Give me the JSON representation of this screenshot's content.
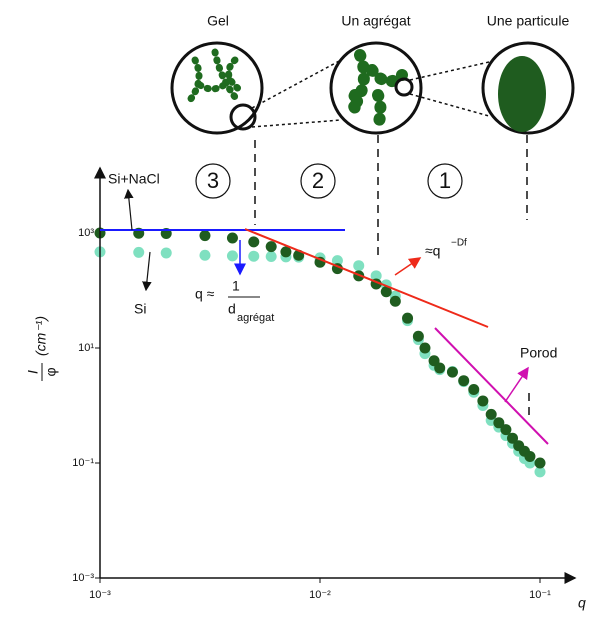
{
  "chart_data": {
    "type": "scatter",
    "log_x": true,
    "log_y": true,
    "xlabel": "q",
    "ylabel_numerator": "I",
    "ylabel_denominator": "φ",
    "ylabel_unit": "(cm⁻¹)",
    "xlim": [
      0.001,
      0.1
    ],
    "ylim": [
      0.001,
      1000
    ],
    "xticks": [
      {
        "value": 0.001,
        "label": "10⁻³"
      },
      {
        "value": 0.01,
        "label": "10⁻²"
      },
      {
        "value": 0.1,
        "label": "10⁻¹"
      }
    ],
    "yticks": [
      {
        "value": 0.001,
        "label": "10⁻³"
      },
      {
        "value": 0.1,
        "label": "10⁻¹"
      },
      {
        "value": 10,
        "label": "10¹"
      },
      {
        "value": 1000,
        "label": "10³"
      }
    ],
    "x": [
      0.001,
      0.0015,
      0.002,
      0.003,
      0.004,
      0.005,
      0.006,
      0.007,
      0.008,
      0.01,
      0.012,
      0.015,
      0.018,
      0.02,
      0.022,
      0.025,
      0.028,
      0.03,
      0.033,
      0.035,
      0.04,
      0.045,
      0.05,
      0.055,
      0.06,
      0.065,
      0.07,
      0.075,
      0.08,
      0.085,
      0.09,
      0.1
    ],
    "series": [
      {
        "name": "Si",
        "color": "#7fe0c0",
        "values": [
          470,
          460,
          450,
          410,
          400,
          395,
          390,
          385,
          380,
          370,
          330,
          270,
          180,
          125,
          80,
          30,
          14,
          8,
          5,
          4.2,
          3.9,
          2.6,
          1.7,
          1.0,
          0.55,
          0.42,
          0.3,
          0.22,
          0.16,
          0.12,
          0.1,
          0.07
        ]
      },
      {
        "name": "Si+NaCl",
        "color": "#1f5c1f",
        "values": [
          1000,
          990,
          980,
          900,
          820,
          700,
          580,
          470,
          410,
          310,
          240,
          180,
          130,
          95,
          65,
          33,
          16,
          10,
          6,
          4.5,
          3.8,
          2.7,
          1.9,
          1.2,
          0.7,
          0.5,
          0.38,
          0.27,
          0.2,
          0.16,
          0.13,
          0.1
        ]
      }
    ],
    "annotations": {
      "si_nacl": "Si+NaCl",
      "si": "Si",
      "q_approx": "q ≈",
      "one": "1",
      "d": "d",
      "agregat_sub": "agrégat",
      "power": "≈q",
      "power_exp": "−Df",
      "porod": "Porod"
    },
    "insets": [
      "Gel",
      "Un agrégat",
      "Une particule"
    ],
    "regions": [
      "3",
      "2",
      "1"
    ]
  }
}
